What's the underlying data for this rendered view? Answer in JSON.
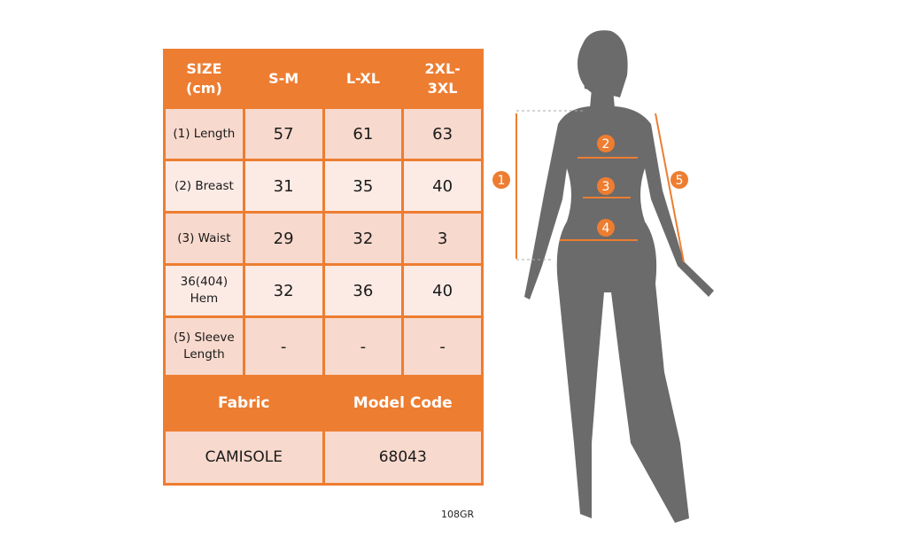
{
  "table": {
    "header": [
      "SIZE\n(cm)",
      "S-M",
      "L-XL",
      "2XL-\n3XL"
    ],
    "rows": [
      {
        "label": "(1) Length",
        "values": [
          "57",
          "61",
          "63"
        ]
      },
      {
        "label": "(2) Breast",
        "values": [
          "31",
          "35",
          "40"
        ]
      },
      {
        "label": "(3) Waist",
        "values": [
          "29",
          "32",
          "3"
        ]
      },
      {
        "label": "36(404)\nHem",
        "values": [
          "32",
          "36",
          "40"
        ]
      },
      {
        "label": "(5) Sleeve\nLength",
        "values": [
          "-",
          "-",
          "-"
        ]
      }
    ],
    "fabric_label": "Fabric",
    "model_code_label": "Model Code",
    "fabric_value": "CAMISOLE",
    "model_code_value": "68043"
  },
  "product_code": "108GR",
  "figure": {
    "markers": [
      "1",
      "2",
      "3",
      "4",
      "5"
    ]
  },
  "colors": {
    "accent": "#ed7d31",
    "row_dark": "#f8d9cd",
    "row_light": "#fcebe5",
    "silhouette": "#6b6b6b"
  }
}
